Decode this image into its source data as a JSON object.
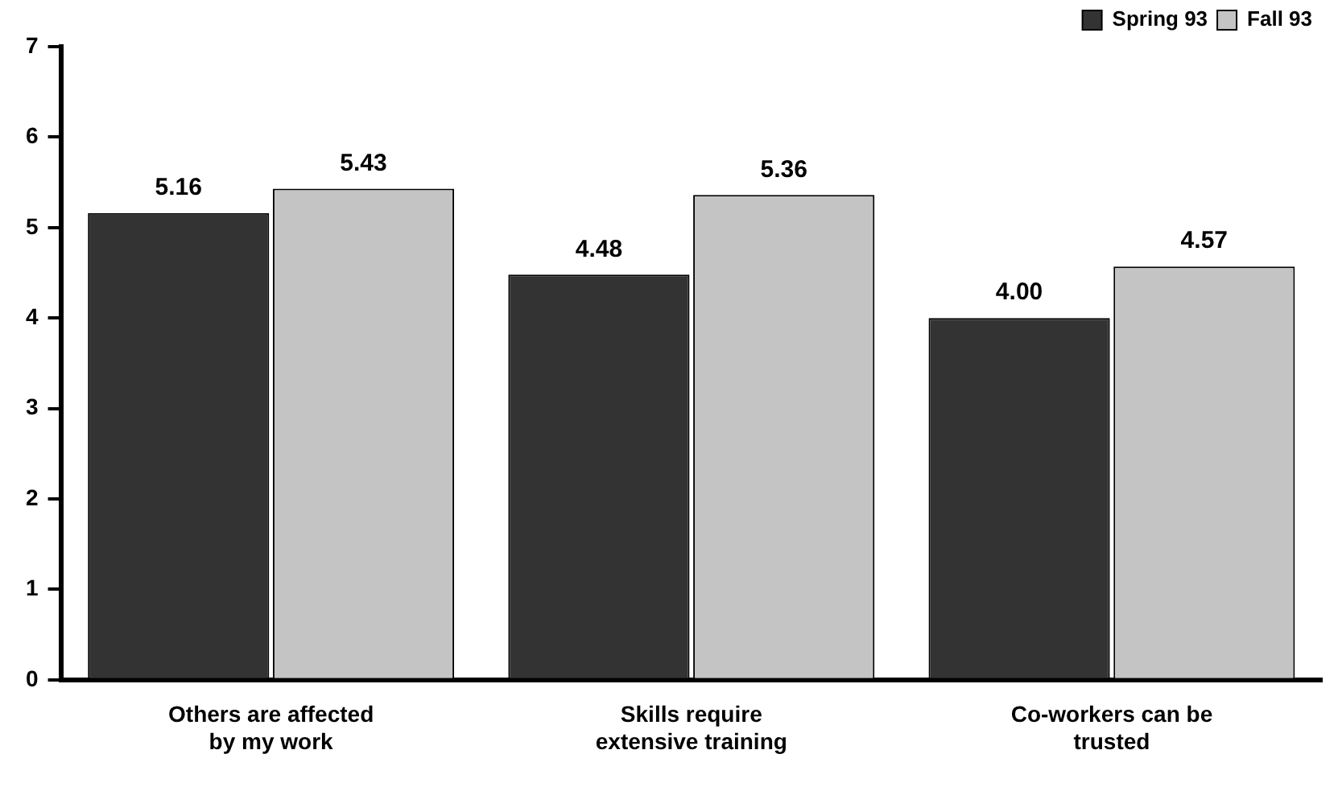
{
  "chart_data": {
    "type": "bar",
    "categories": [
      "Others are affected by my work",
      "Skills require extensive training",
      "Co-workers can be trusted"
    ],
    "series": [
      {
        "name": "Spring 93",
        "color": "#333333",
        "values": [
          5.16,
          4.48,
          4.0
        ],
        "value_labels": [
          "5.16",
          "4.48",
          "4.00"
        ]
      },
      {
        "name": "Fall 93",
        "color": "#c4c4c4",
        "values": [
          5.43,
          5.36,
          4.57
        ],
        "value_labels": [
          "5.43",
          "5.36",
          "4.57"
        ]
      }
    ],
    "ylim": [
      0,
      7
    ],
    "yticks": [
      0,
      1,
      2,
      3,
      4,
      5,
      6,
      7
    ],
    "grid": false,
    "legend": "top right"
  }
}
